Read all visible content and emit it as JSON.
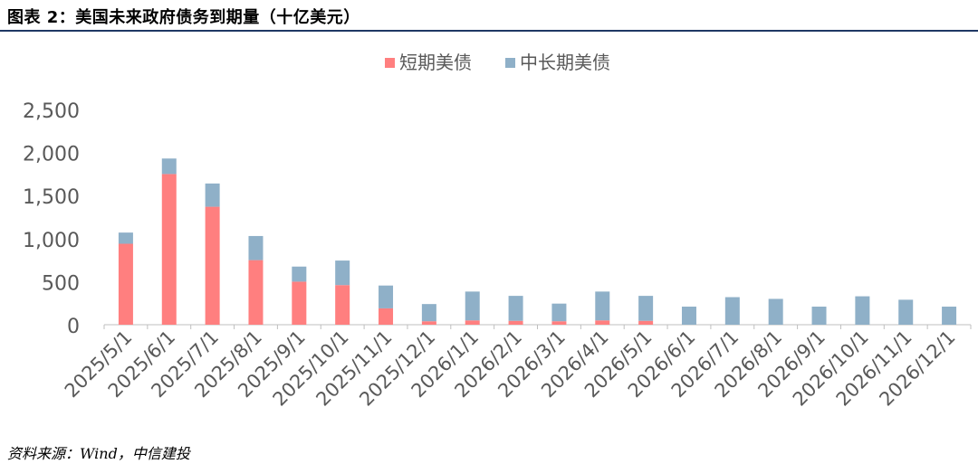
{
  "header": {
    "title": "图表 2：美国未来政府债务到期量（十亿美元）"
  },
  "footer": {
    "source": "资料来源：Wind，中信建投"
  },
  "colors": {
    "short": "#ff7f7f",
    "long": "#8fb0c8",
    "title_rule": "#1f3864",
    "axis": "#bfbfbf",
    "text": "#595959"
  },
  "chart_data": {
    "type": "bar",
    "stacked": true,
    "title": "",
    "xlabel": "",
    "ylabel": "",
    "ylim": [
      0,
      2500
    ],
    "yticks": [
      0,
      500,
      1000,
      1500,
      2000,
      2500
    ],
    "ytick_labels": [
      "0",
      "500",
      "1,000",
      "1,500",
      "2,000",
      "2,500"
    ],
    "grid": false,
    "legend": "top-center",
    "categories": [
      "2025/5/1",
      "2025/6/1",
      "2025/7/1",
      "2025/8/1",
      "2025/9/1",
      "2025/10/1",
      "2025/11/1",
      "2025/12/1",
      "2026/1/1",
      "2026/2/1",
      "2026/3/1",
      "2026/4/1",
      "2026/5/1",
      "2026/6/1",
      "2026/7/1",
      "2026/8/1",
      "2026/9/1",
      "2026/10/1",
      "2026/11/1",
      "2026/12/1"
    ],
    "series": [
      {
        "name": "短期美债",
        "values": [
          940,
          1750,
          1370,
          750,
          500,
          460,
          190,
          40,
          50,
          45,
          40,
          50,
          45,
          0,
          0,
          0,
          0,
          0,
          0,
          0
        ]
      },
      {
        "name": "中长期美债",
        "values": [
          130,
          180,
          270,
          280,
          175,
          285,
          265,
          200,
          335,
          290,
          205,
          335,
          290,
          210,
          320,
          300,
          210,
          330,
          290,
          210
        ]
      }
    ]
  }
}
